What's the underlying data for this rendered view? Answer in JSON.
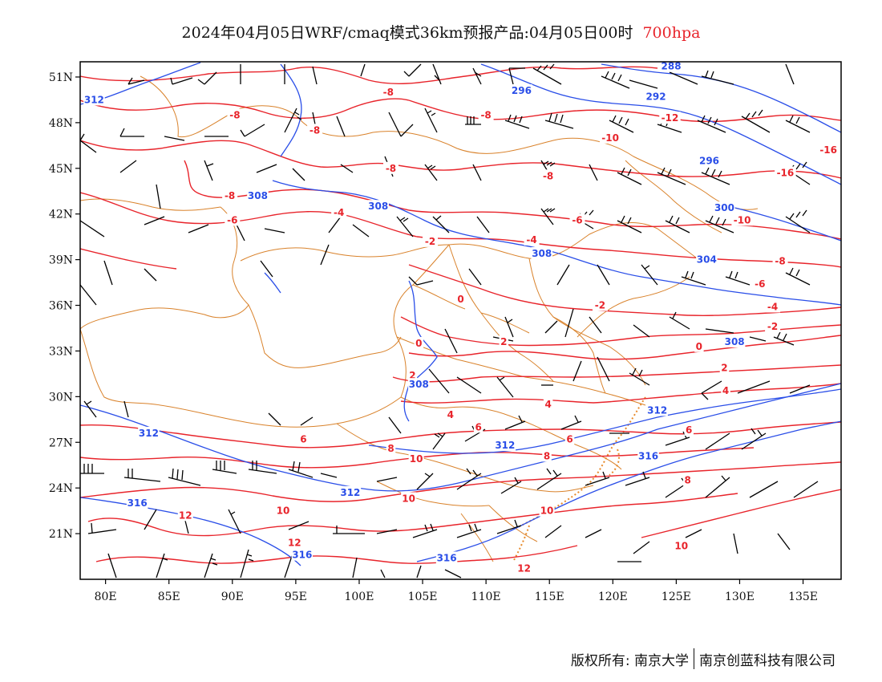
{
  "title": {
    "main": "2024年04月05日WRF/cmaq模式36km预报产品:04月05日00时",
    "level": "700hpa"
  },
  "footer": {
    "copyright": "版权所有: 南京大学",
    "company": "南京创蓝科技有限公司"
  },
  "axes": {
    "lon_labels": [
      "80E",
      "85E",
      "90E",
      "95E",
      "100E",
      "105E",
      "110E",
      "115E",
      "120E",
      "125E",
      "130E",
      "135E"
    ],
    "lat_labels": [
      "51N",
      "48N",
      "45N",
      "42N",
      "39N",
      "36N",
      "33N",
      "30N",
      "27N",
      "24N",
      "21N"
    ]
  },
  "map": {
    "lon_range": [
      78,
      138
    ],
    "lat_range": [
      18,
      52
    ],
    "temperature_color": "#e8242b",
    "height_color": "#2a4ee8",
    "boundary_color": "#d9822b",
    "wind_barb_color": "#000000",
    "temperature_labels": [
      {
        "text": "-8",
        "lon": 90.2,
        "lat": 48.5
      },
      {
        "text": "-8",
        "lon": 96.5,
        "lat": 47.5
      },
      {
        "text": "-8",
        "lon": 102.3,
        "lat": 50.0
      },
      {
        "text": "-8",
        "lon": 110.0,
        "lat": 48.5
      },
      {
        "text": "-12",
        "lon": 124.5,
        "lat": 48.3
      },
      {
        "text": "-10",
        "lon": 119.8,
        "lat": 47.0
      },
      {
        "text": "-8",
        "lon": 102.5,
        "lat": 45.0
      },
      {
        "text": "-8",
        "lon": 114.9,
        "lat": 44.5
      },
      {
        "text": "-8",
        "lon": 89.8,
        "lat": 43.2
      },
      {
        "text": "-16",
        "lon": 133.6,
        "lat": 44.7
      },
      {
        "text": "-16",
        "lon": 137.0,
        "lat": 46.2
      },
      {
        "text": "-4",
        "lon": 98.4,
        "lat": 42.1
      },
      {
        "text": "-6",
        "lon": 117.2,
        "lat": 41.6
      },
      {
        "text": "-6",
        "lon": 90.0,
        "lat": 41.6
      },
      {
        "text": "-10",
        "lon": 130.2,
        "lat": 41.6
      },
      {
        "text": "-2",
        "lon": 105.6,
        "lat": 40.2
      },
      {
        "text": "-4",
        "lon": 113.6,
        "lat": 40.3
      },
      {
        "text": "-8",
        "lon": 133.2,
        "lat": 38.9
      },
      {
        "text": "-6",
        "lon": 131.6,
        "lat": 37.4
      },
      {
        "text": "0",
        "lon": 108.0,
        "lat": 36.4
      },
      {
        "text": "-2",
        "lon": 119.0,
        "lat": 36.0
      },
      {
        "text": "-4",
        "lon": 132.6,
        "lat": 35.9
      },
      {
        "text": "-2",
        "lon": 132.6,
        "lat": 34.6
      },
      {
        "text": "0",
        "lon": 104.7,
        "lat": 33.5
      },
      {
        "text": "2",
        "lon": 111.4,
        "lat": 33.6
      },
      {
        "text": "0",
        "lon": 126.8,
        "lat": 33.3
      },
      {
        "text": "2",
        "lon": 104.2,
        "lat": 31.4
      },
      {
        "text": "2",
        "lon": 128.8,
        "lat": 31.9
      },
      {
        "text": "4",
        "lon": 128.9,
        "lat": 30.4
      },
      {
        "text": "4",
        "lon": 107.2,
        "lat": 28.8
      },
      {
        "text": "4",
        "lon": 114.9,
        "lat": 29.5
      },
      {
        "text": "6",
        "lon": 109.4,
        "lat": 28.0
      },
      {
        "text": "6",
        "lon": 95.6,
        "lat": 27.2
      },
      {
        "text": "6",
        "lon": 126.0,
        "lat": 27.8
      },
      {
        "text": "6",
        "lon": 116.6,
        "lat": 27.2
      },
      {
        "text": "8",
        "lon": 102.5,
        "lat": 26.6
      },
      {
        "text": "8",
        "lon": 114.8,
        "lat": 26.1
      },
      {
        "text": "8",
        "lon": 125.9,
        "lat": 24.5
      },
      {
        "text": "10",
        "lon": 104.5,
        "lat": 25.9
      },
      {
        "text": "10",
        "lon": 103.9,
        "lat": 23.3
      },
      {
        "text": "10",
        "lon": 114.8,
        "lat": 22.5
      },
      {
        "text": "10",
        "lon": 94.0,
        "lat": 22.5
      },
      {
        "text": "10",
        "lon": 125.4,
        "lat": 20.2
      },
      {
        "text": "12",
        "lon": 86.3,
        "lat": 22.2
      },
      {
        "text": "12",
        "lon": 94.9,
        "lat": 20.4
      },
      {
        "text": "12",
        "lon": 113.0,
        "lat": 18.7
      }
    ],
    "height_labels": [
      {
        "text": "288",
        "lon": 124.6,
        "lat": 51.7
      },
      {
        "text": "296",
        "lon": 112.8,
        "lat": 50.1
      },
      {
        "text": "292",
        "lon": 123.4,
        "lat": 49.7
      },
      {
        "text": "312",
        "lon": 79.1,
        "lat": 49.5
      },
      {
        "text": "296",
        "lon": 127.6,
        "lat": 45.5
      },
      {
        "text": "308",
        "lon": 92.0,
        "lat": 43.2
      },
      {
        "text": "308",
        "lon": 101.5,
        "lat": 42.5
      },
      {
        "text": "300",
        "lon": 128.8,
        "lat": 42.4
      },
      {
        "text": "308",
        "lon": 114.4,
        "lat": 39.4
      },
      {
        "text": "304",
        "lon": 127.4,
        "lat": 39.0
      },
      {
        "text": "308",
        "lon": 129.6,
        "lat": 33.6
      },
      {
        "text": "308",
        "lon": 104.7,
        "lat": 30.8
      },
      {
        "text": "312",
        "lon": 123.5,
        "lat": 29.1
      },
      {
        "text": "312",
        "lon": 83.4,
        "lat": 27.6
      },
      {
        "text": "312",
        "lon": 111.5,
        "lat": 26.8
      },
      {
        "text": "316",
        "lon": 122.8,
        "lat": 26.1
      },
      {
        "text": "312",
        "lon": 99.3,
        "lat": 23.7
      },
      {
        "text": "316",
        "lon": 82.5,
        "lat": 23.0
      },
      {
        "text": "316",
        "lon": 95.5,
        "lat": 19.6
      },
      {
        "text": "316",
        "lon": 106.9,
        "lat": 19.4
      }
    ]
  }
}
